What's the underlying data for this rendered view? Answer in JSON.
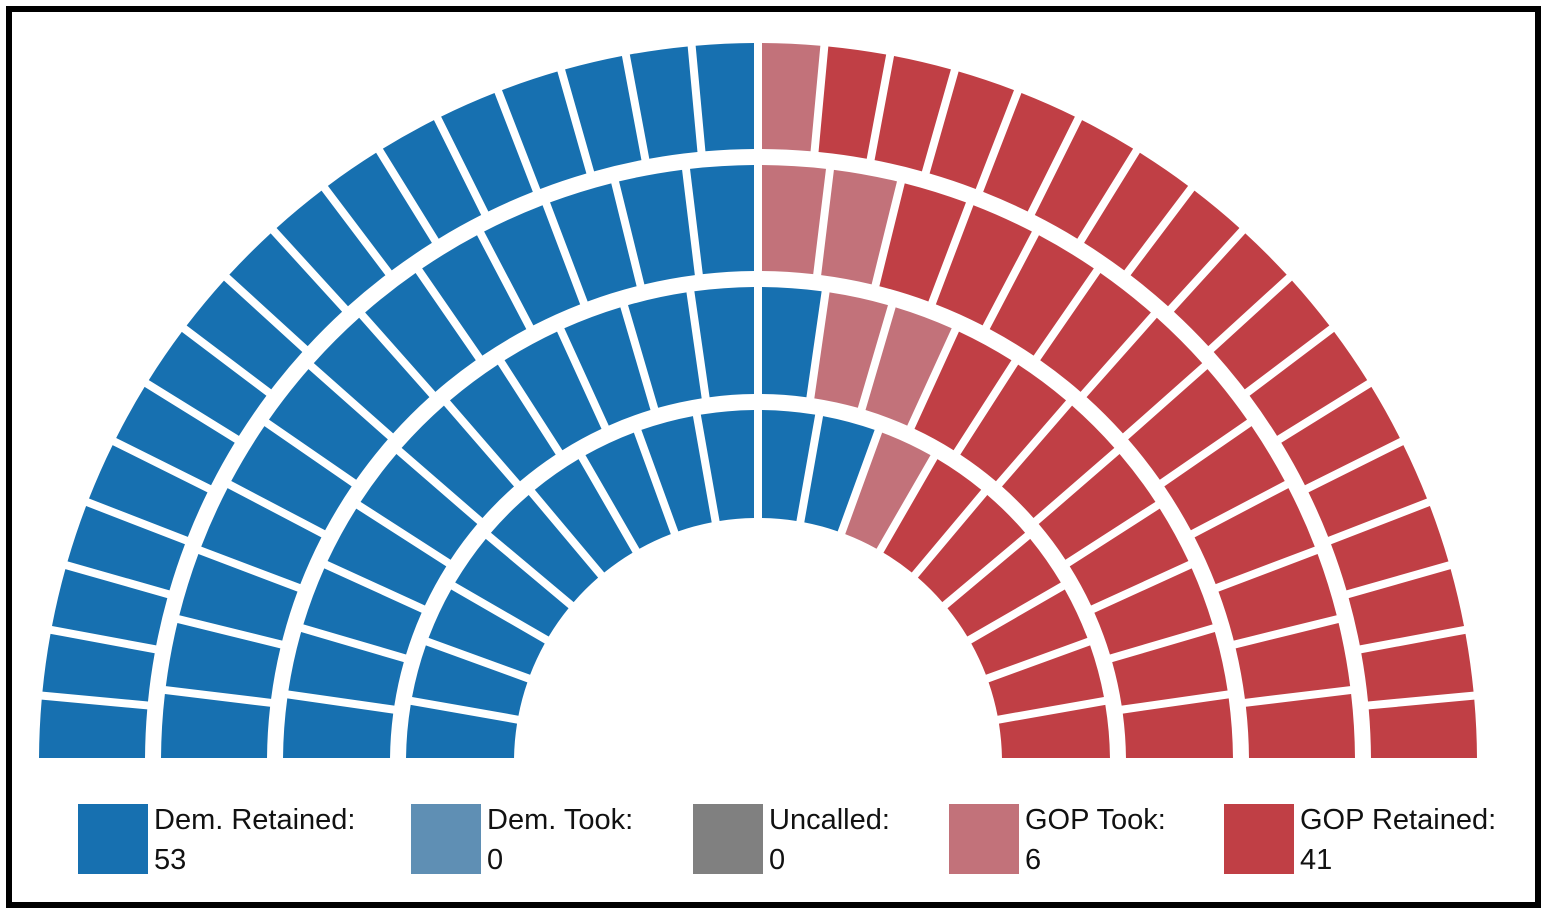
{
  "chart_data": {
    "type": "parliament",
    "title": "",
    "total_seats": 100,
    "rows": 4,
    "categories": [
      "Dem. Retained:",
      "Dem. Took:",
      "Uncalled:",
      "GOP Took:",
      "GOP Retained:"
    ],
    "values": [
      53,
      0,
      0,
      6,
      41
    ],
    "colors": [
      "#1770b0",
      "#5f8fb4",
      "#808080",
      "#c2727a",
      "#c03f45"
    ],
    "legend_position": "bottom",
    "seat_rows": [
      {
        "row": 1,
        "seats": [
          11,
          0,
          0,
          1,
          6
        ]
      },
      {
        "row": 2,
        "seats": [
          12,
          0,
          0,
          2,
          8
        ]
      },
      {
        "row": 3,
        "seats": [
          13,
          0,
          0,
          2,
          11
        ]
      },
      {
        "row": 4,
        "seats": [
          17,
          0,
          0,
          1,
          16
        ]
      }
    ]
  },
  "legend": {
    "items": [
      {
        "label": "Dem. Retained:",
        "value": "53",
        "color": "#1770b0"
      },
      {
        "label": "Dem. Took:",
        "value": "0",
        "color": "#5f8fb4"
      },
      {
        "label": "Uncalled:",
        "value": "0",
        "color": "#808080"
      },
      {
        "label": "GOP Took:",
        "value": "6",
        "color": "#c2727a"
      },
      {
        "label": "GOP Retained:",
        "value": "41",
        "color": "#c03f45"
      }
    ]
  }
}
